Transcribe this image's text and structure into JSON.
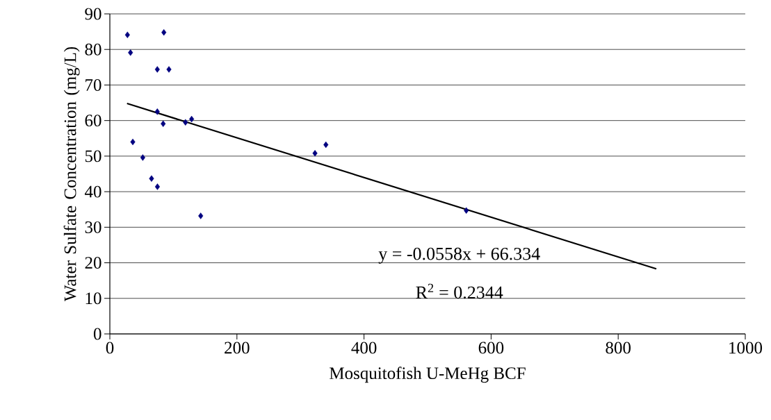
{
  "chart_data": {
    "type": "scatter",
    "xlabel": "Mosquitofish U-MeHg BCF",
    "ylabel": "Water Sulfate Concentration (mg/L)",
    "xlim": [
      0,
      1000
    ],
    "xticks": [
      0,
      200,
      400,
      600,
      800,
      1000
    ],
    "ylim": [
      0,
      90
    ],
    "yticks": [
      0,
      10,
      20,
      30,
      40,
      50,
      60,
      70,
      80,
      90
    ],
    "grid": "y",
    "legend": false,
    "marker": "diamond",
    "series": [
      {
        "color": "#000080",
        "x": [
          27.7,
          85,
          32.5,
          74.7,
          93,
          74.7,
          83.9,
          119,
          128.7,
          36.1,
          51.8,
          65.6,
          74.9,
          143,
          322.8,
          340,
          560.9
        ],
        "values": [
          84.1,
          84.8,
          79.1,
          74.4,
          74.4,
          62.5,
          59.1,
          59.5,
          60.4,
          54.0,
          49.6,
          43.7,
          41.4,
          33.2,
          50.8,
          53.2,
          34.7
        ]
      },
      {
        "type": "line",
        "marker": "none",
        "color": "#000000",
        "x": [
          27,
          860
        ],
        "values": [
          64.8,
          18.3
        ]
      }
    ],
    "annotations": [
      "y = -0.0558x + 66.334",
      "R$^{2}$ = 0.2344"
    ]
  }
}
